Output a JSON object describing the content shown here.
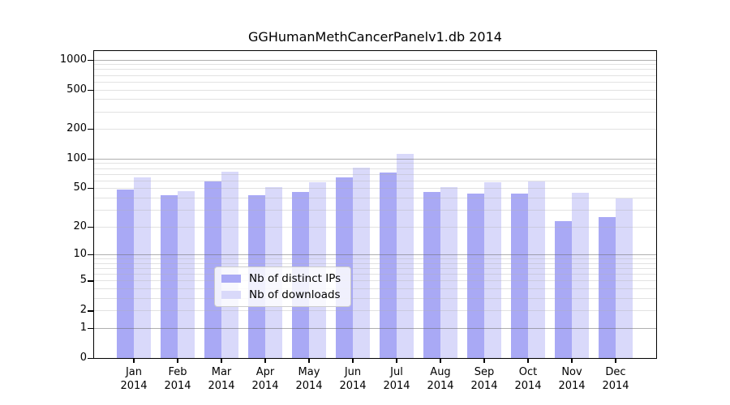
{
  "title": "GGHumanMethCancerPanelv1.db 2014",
  "chart_data": {
    "type": "bar",
    "title": "GGHumanMethCancerPanelv1.db 2014",
    "categories": [
      "Jan",
      "Feb",
      "Mar",
      "Apr",
      "May",
      "Jun",
      "Jul",
      "Aug",
      "Sep",
      "Oct",
      "Nov",
      "Dec"
    ],
    "category_year": "2014",
    "series": [
      {
        "name": "Nb of distinct IPs",
        "color": "#a9a9f5",
        "values": [
          48,
          42,
          59,
          42,
          46,
          65,
          73,
          46,
          44,
          44,
          23,
          25
        ]
      },
      {
        "name": "Nb of downloads",
        "color": "#d9d9fa",
        "values": [
          64,
          47,
          74,
          51,
          58,
          81,
          111,
          51,
          58,
          59,
          45,
          39
        ]
      }
    ],
    "y_scale": "log10(1+v)",
    "y_tick_values": [
      0,
      1,
      2,
      5,
      10,
      20,
      50,
      100,
      200,
      500,
      1000
    ],
    "y_tick_labels": [
      "0",
      "1",
      "2",
      "5",
      "10",
      "20",
      "50",
      "100",
      "200",
      "500",
      "1000"
    ],
    "minor_grid_values": [
      2,
      3,
      4,
      5,
      6,
      7,
      8,
      9,
      20,
      30,
      40,
      50,
      60,
      70,
      80,
      90,
      200,
      300,
      400,
      500,
      600,
      700,
      800,
      900
    ],
    "major_grid_values": [
      1,
      10,
      100,
      1000
    ],
    "ylim": [
      0,
      1200
    ],
    "grid": true,
    "grid_on_top_of_bars": true,
    "legend_position": "bottom-center-inside",
    "xlabel": "",
    "ylabel": ""
  },
  "legend": {
    "items": [
      {
        "label": "Nb of distinct IPs",
        "swatch": "#a9a9f5"
      },
      {
        "label": "Nb of downloads",
        "swatch": "#d9d9fa"
      }
    ]
  },
  "colors": {
    "background": "#ffffff",
    "plot_border": "#000000",
    "text": "#000000",
    "major_grid": "#aeaeae",
    "minor_grid": "#e9e9e9",
    "bar_ips": "#a9a9f5",
    "bar_downloads": "#d9d9fa"
  }
}
